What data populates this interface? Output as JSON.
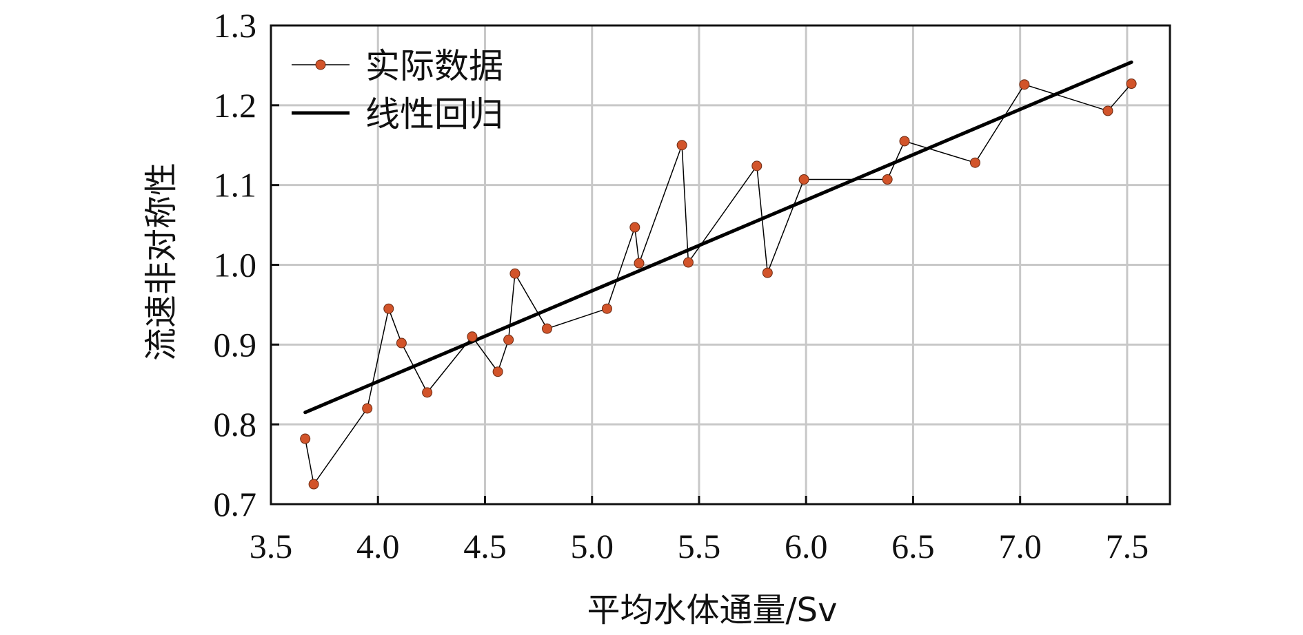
{
  "chart_data": {
    "type": "line",
    "xlabel": "平均水体通量/Sv",
    "ylabel": "流速非对称性",
    "xlim": [
      3.5,
      7.7
    ],
    "ylim": [
      0.7,
      1.3
    ],
    "xticks": [
      "3.5",
      "4.0",
      "4.5",
      "5.0",
      "5.5",
      "6.0",
      "6.5",
      "7.0",
      "7.5"
    ],
    "yticks": [
      "0.7",
      "0.8",
      "0.9",
      "1.0",
      "1.1",
      "1.2",
      "1.3"
    ],
    "grid": true,
    "legend_position": "top-left",
    "series": [
      {
        "name": "实际数据",
        "style": "line-markers",
        "color": "#d2542a",
        "x": [
          3.66,
          3.7,
          3.95,
          4.05,
          4.11,
          4.23,
          4.44,
          4.56,
          4.61,
          4.64,
          4.79,
          5.07,
          5.2,
          5.22,
          5.42,
          5.45,
          5.77,
          5.82,
          5.99,
          6.38,
          6.46,
          6.79,
          7.02,
          7.41,
          7.52
        ],
        "y": [
          0.782,
          0.725,
          0.82,
          0.945,
          0.902,
          0.84,
          0.91,
          0.866,
          0.906,
          0.989,
          0.92,
          0.945,
          1.047,
          1.002,
          1.15,
          1.003,
          1.124,
          0.99,
          1.107,
          1.107,
          1.155,
          1.128,
          1.226,
          1.193,
          1.227
        ]
      },
      {
        "name": "线性回归",
        "style": "line",
        "color": "#000000",
        "x": [
          3.66,
          7.52
        ],
        "y": [
          0.815,
          1.254
        ]
      }
    ]
  }
}
